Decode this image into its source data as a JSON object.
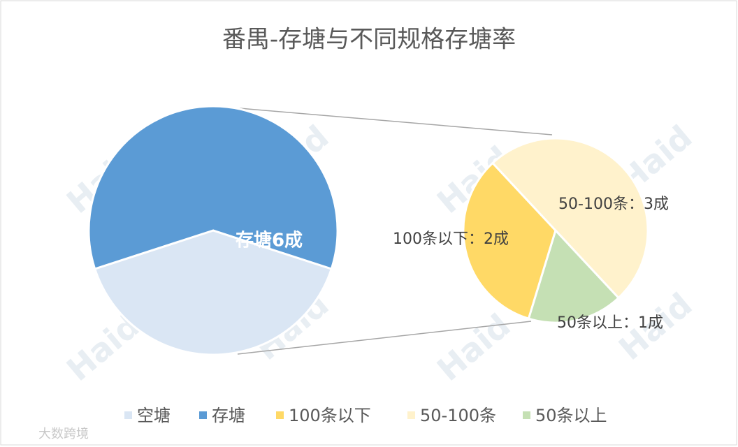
{
  "chart_data": {
    "type": "pie-of-pie",
    "title": "番禺-存塘与不同规格存塘率",
    "categories": [
      "空塘",
      "存塘"
    ],
    "values": [
      4,
      6
    ],
    "value_labels": [
      null,
      "存塘6成"
    ],
    "colors": [
      "#dae6f4",
      "#5b9bd5"
    ],
    "breakdown": {
      "categories": [
        "100条以下",
        "50-100条",
        "50条以上"
      ],
      "values": [
        2,
        3,
        1
      ],
      "value_labels": [
        "100条以下：2成",
        "50-100条：3成",
        "50条以上：1成"
      ],
      "colors": [
        "#ffd966",
        "#fff2cc",
        "#c5e0b4"
      ]
    },
    "legend": "bottom",
    "watermarks": [
      "Haid",
      "大数跨境"
    ]
  }
}
